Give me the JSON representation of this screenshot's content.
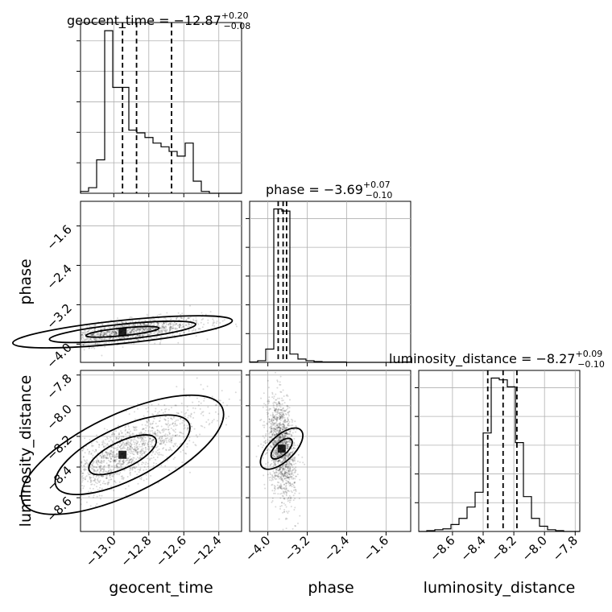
{
  "figure": {
    "type": "corner-plot",
    "parameters": [
      "geocent_time",
      "phase",
      "luminosity_distance"
    ]
  },
  "chart_data": {
    "type": "corner",
    "grid": true,
    "parameters": [
      {
        "name": "geocent_time",
        "axis_label": "geocent_time",
        "range": [
          -13.19,
          -12.27
        ],
        "ticks": [
          -13.0,
          -12.8,
          -12.6,
          -12.4
        ],
        "tick_labels": [
          "−13.0",
          "−12.8",
          "−12.6",
          "−12.4"
        ],
        "title_main": "geocent_time = −12.87",
        "title_plus": "+0.20",
        "title_minus": "−0.08",
        "median": -12.87,
        "err_plus": 0.2,
        "err_minus": 0.08,
        "quantiles": [
          -12.95,
          -12.87,
          -12.67
        ],
        "hist_bins": [
          -13.19,
          -13.144,
          -13.098,
          -13.052,
          -13.006,
          -12.96,
          -12.914,
          -12.868,
          -12.822,
          -12.776,
          -12.73,
          -12.684,
          -12.638,
          -12.592,
          -12.546,
          -12.5,
          -12.454,
          -12.408,
          -12.362,
          -12.316,
          -12.27
        ],
        "hist_counts": [
          2,
          6,
          36,
          175,
          114,
          114,
          68,
          65,
          60,
          54,
          50,
          45,
          40,
          54,
          13,
          2,
          0,
          0,
          0,
          0
        ]
      },
      {
        "name": "phase",
        "axis_label": "phase",
        "range": [
          -4.37,
          -1.1
        ],
        "ticks": [
          -4.0,
          -3.2,
          -2.4,
          -1.6
        ],
        "tick_labels": [
          "−4.0",
          "−3.2",
          "−2.4",
          "−1.6"
        ],
        "title_main": "phase = −3.69",
        "title_plus": "+0.07",
        "title_minus": "−0.10",
        "median": -3.69,
        "err_plus": 0.07,
        "err_minus": 0.1,
        "quantiles": [
          -3.79,
          -3.69,
          -3.62
        ],
        "hist_bins": [
          -4.37,
          -4.2065,
          -4.043,
          -3.8795,
          -3.716,
          -3.5525,
          -3.389,
          -3.2255,
          -3.062,
          -2.8985,
          -2.735,
          -2.5715,
          -2.408,
          -2.2445,
          -2.081,
          -1.9175,
          -1.754,
          -1.5905,
          -1.427,
          -1.2635,
          -1.1
        ],
        "hist_counts": [
          1,
          4,
          32,
          370,
          365,
          20,
          8,
          4,
          2,
          1,
          1,
          1,
          0,
          0,
          0,
          0,
          0,
          0,
          0,
          1
        ]
      },
      {
        "name": "luminosity_distance",
        "axis_label": "luminosity_distance",
        "range": [
          -8.82,
          -7.77
        ],
        "ticks": [
          -8.6,
          -8.4,
          -8.2,
          -8.0,
          -7.8
        ],
        "tick_labels": [
          "−8.6",
          "−8.4",
          "−8.2",
          "−8.0",
          "−7.8"
        ],
        "title_main": "luminosity_distance = −8.27",
        "title_plus": "+0.09",
        "title_minus": "−0.10",
        "median": -8.27,
        "err_plus": 0.09,
        "err_minus": 0.1,
        "quantiles": [
          -8.37,
          -8.27,
          -8.18
        ],
        "hist_bins": [
          -8.82,
          -8.7675,
          -8.715,
          -8.6625,
          -8.61,
          -8.5575,
          -8.505,
          -8.4525,
          -8.4,
          -8.3475,
          -8.295,
          -8.2425,
          -8.19,
          -8.1375,
          -8.085,
          -8.0325,
          -7.98,
          -7.9275,
          -7.875,
          -7.8225,
          -7.77
        ],
        "hist_counts": [
          0,
          1,
          2,
          3,
          8,
          15,
          28,
          45,
          113,
          176,
          174,
          166,
          102,
          40,
          15,
          6,
          2,
          1,
          0,
          0
        ]
      }
    ],
    "pairs": [
      {
        "x_param": "geocent_time",
        "y_param": "phase",
        "density_peak": [
          -12.95,
          -3.75
        ],
        "correlation": 0.6,
        "contour_levels": 3
      },
      {
        "x_param": "geocent_time",
        "y_param": "luminosity_distance",
        "density_peak": [
          -12.95,
          -8.32
        ],
        "correlation": 0.8,
        "contour_levels": 3
      },
      {
        "x_param": "phase",
        "y_param": "luminosity_distance",
        "density_peak": [
          -3.72,
          -8.28
        ],
        "correlation": -0.3,
        "contour_levels": 2
      }
    ]
  }
}
